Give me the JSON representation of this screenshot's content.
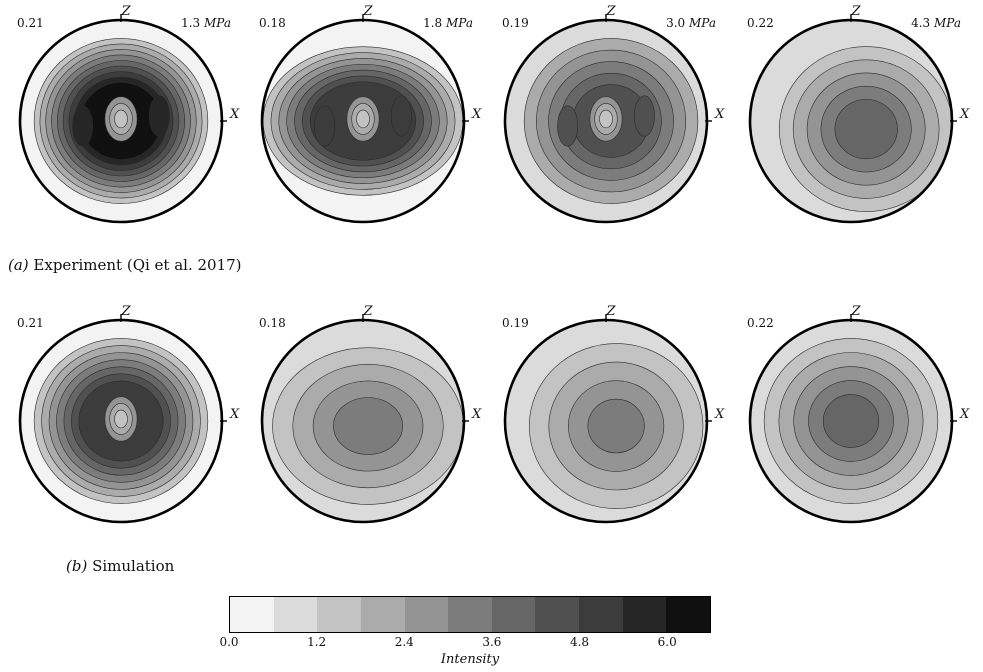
{
  "figure": {
    "caption_a": {
      "label": "(a)",
      "text": " Experiment (Qi et al. 2017)"
    },
    "caption_b": {
      "label": "(b)",
      "text": " Simulation"
    },
    "colorbar": {
      "title": "Intensity",
      "ticks": [
        "0.0",
        "1.2",
        "2.4",
        "3.6",
        "4.8",
        "6.0"
      ],
      "tick_values": [
        0.0,
        1.2,
        2.4,
        3.6,
        4.8,
        6.0
      ],
      "range": [
        0.0,
        6.6
      ],
      "levels": 11,
      "colors": [
        "#f3f3f3",
        "#dbdbdb",
        "#c3c3c3",
        "#ababab",
        "#949494",
        "#7c7c7c",
        "#666666",
        "#505050",
        "#3c3c3c",
        "#262626",
        "#101010"
      ]
    },
    "axis_labels": {
      "z": "Z",
      "x": "X"
    }
  },
  "chart_data": [
    {
      "type": "heatmap",
      "row": "experiment",
      "pole_figure": 1,
      "corner_value": "0.21",
      "stress_label": "1.3 MPa",
      "peak_intensity": 6.0,
      "background_intensity": 0.3,
      "outer_intensity": 1.5
    },
    {
      "type": "heatmap",
      "row": "experiment",
      "pole_figure": 2,
      "corner_value": "0.18",
      "stress_label": "1.8 MPa",
      "peak_intensity": 5.3,
      "background_intensity": 0.3,
      "outer_intensity": 1.6
    },
    {
      "type": "heatmap",
      "row": "experiment",
      "pole_figure": 3,
      "corner_value": "0.19",
      "stress_label": "3.0 MPa",
      "peak_intensity": 4.6,
      "background_intensity": 1.0,
      "outer_intensity": 1.8
    },
    {
      "type": "heatmap",
      "row": "experiment",
      "pole_figure": 4,
      "corner_value": "0.22",
      "stress_label": "4.3 MPa",
      "peak_intensity": 4.0,
      "background_intensity": 1.0,
      "outer_intensity": 1.6
    },
    {
      "type": "heatmap",
      "row": "simulation",
      "pole_figure": 1,
      "corner_value": "0.21",
      "stress_label": "",
      "peak_intensity": 5.0,
      "background_intensity": 0.3,
      "outer_intensity": 1.5
    },
    {
      "type": "heatmap",
      "row": "simulation",
      "pole_figure": 2,
      "corner_value": "0.18",
      "stress_label": "",
      "peak_intensity": 3.4,
      "background_intensity": 0.6,
      "outer_intensity": 1.4
    },
    {
      "type": "heatmap",
      "row": "simulation",
      "pole_figure": 3,
      "corner_value": "0.19",
      "stress_label": "",
      "peak_intensity": 3.5,
      "background_intensity": 1.0,
      "outer_intensity": 1.5
    },
    {
      "type": "heatmap",
      "row": "simulation",
      "pole_figure": 4,
      "corner_value": "0.22",
      "stress_label": "",
      "peak_intensity": 3.6,
      "background_intensity": 1.0,
      "outer_intensity": 1.3
    }
  ]
}
